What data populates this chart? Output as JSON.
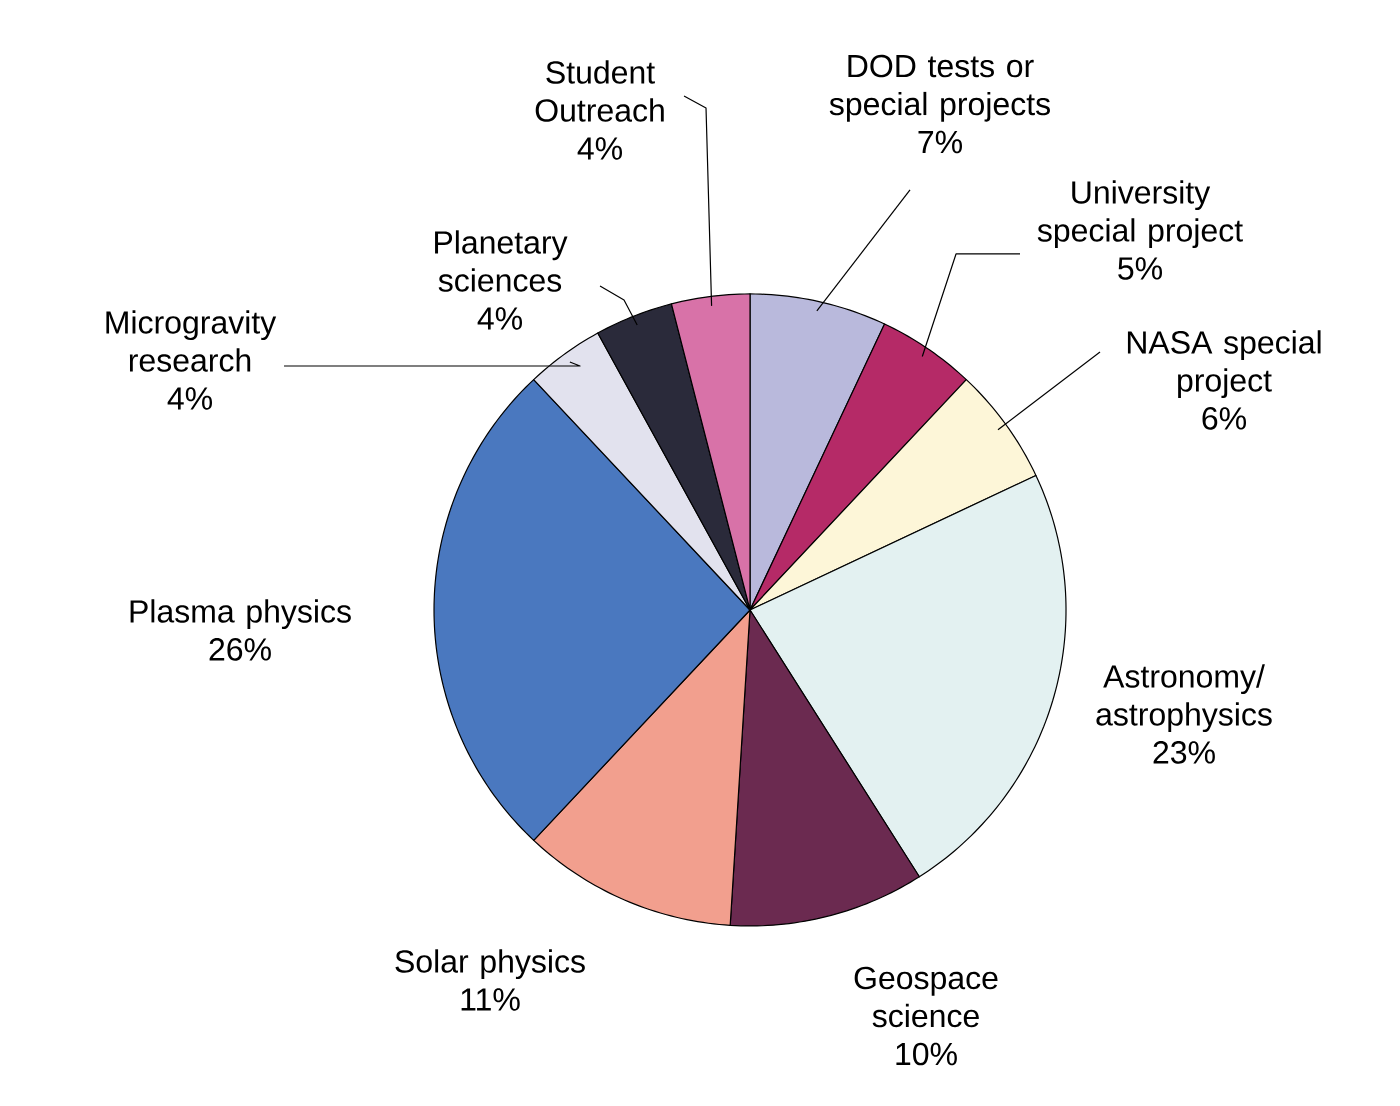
{
  "chart_data": {
    "type": "pie",
    "categories": [
      "DOD tests or special projects",
      "University special project",
      "NASA special project",
      "Astronomy/ astrophysics",
      "Geospace science",
      "Solar physics",
      "Plasma physics",
      "Microgravity research",
      "Planetary sciences",
      "Student Outreach"
    ],
    "values": [
      7,
      5,
      6,
      23,
      10,
      11,
      26,
      4,
      4,
      4
    ],
    "value_labels": [
      "7%",
      "5%",
      "6%",
      "23%",
      "10%",
      "11%",
      "26%",
      "4%",
      "4%",
      "4%"
    ],
    "colors": [
      "#b9b9dc",
      "#b52a67",
      "#fdf6d8",
      "#e3f1f1",
      "#6b2a50",
      "#f29f8e",
      "#4a78bf",
      "#e2e2ee",
      "#2a2a3a",
      "#d872a8"
    ]
  }
}
